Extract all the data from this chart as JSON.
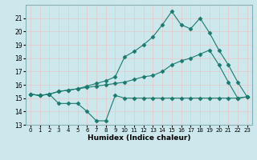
{
  "title": "",
  "xlabel": "Humidex (Indice chaleur)",
  "ylabel": "",
  "background_color": "#cce8ec",
  "grid_color": "#e8c8c8",
  "line_color": "#1a7a6e",
  "xlim": [
    -0.5,
    23.5
  ],
  "ylim": [
    13,
    22
  ],
  "yticks": [
    13,
    14,
    15,
    16,
    17,
    18,
    19,
    20,
    21
  ],
  "xticks": [
    0,
    1,
    2,
    3,
    4,
    5,
    6,
    7,
    8,
    9,
    10,
    11,
    12,
    13,
    14,
    15,
    16,
    17,
    18,
    19,
    20,
    21,
    22,
    23
  ],
  "line1_x": [
    0,
    1,
    2,
    3,
    4,
    5,
    6,
    7,
    8,
    9,
    10,
    11,
    12,
    13,
    14,
    15,
    16,
    17,
    18,
    19,
    20,
    21,
    22,
    23
  ],
  "line1_y": [
    15.3,
    15.2,
    15.3,
    14.6,
    14.6,
    14.6,
    14.0,
    13.3,
    13.3,
    15.2,
    15.0,
    15.0,
    15.0,
    15.0,
    15.0,
    15.0,
    15.0,
    15.0,
    15.0,
    15.0,
    15.0,
    15.0,
    15.0,
    15.1
  ],
  "line2_x": [
    0,
    1,
    2,
    3,
    4,
    5,
    6,
    7,
    8,
    9,
    10,
    11,
    12,
    13,
    14,
    15,
    16,
    17,
    18,
    19,
    20,
    21,
    22,
    23
  ],
  "line2_y": [
    15.3,
    15.2,
    15.3,
    15.5,
    15.6,
    15.7,
    15.8,
    15.9,
    16.0,
    16.1,
    16.2,
    16.4,
    16.6,
    16.7,
    17.0,
    17.5,
    17.8,
    18.0,
    18.3,
    18.6,
    17.5,
    16.2,
    15.0,
    15.1
  ],
  "line3_x": [
    0,
    1,
    2,
    3,
    4,
    5,
    6,
    7,
    8,
    9,
    10,
    11,
    12,
    13,
    14,
    15,
    16,
    17,
    18,
    19,
    20,
    21,
    22,
    23
  ],
  "line3_y": [
    15.3,
    15.2,
    15.3,
    15.5,
    15.6,
    15.7,
    15.9,
    16.1,
    16.3,
    16.6,
    18.1,
    18.5,
    19.0,
    19.6,
    20.5,
    21.5,
    20.5,
    20.2,
    21.0,
    19.9,
    18.6,
    17.5,
    16.2,
    15.1
  ],
  "marker": "D",
  "markersize": 2.5
}
